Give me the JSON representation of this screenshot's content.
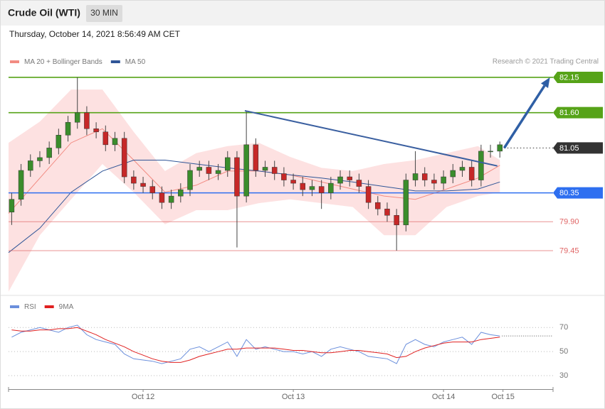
{
  "header": {
    "title": "Crude Oil (WTI)",
    "interval": "30 MIN",
    "timestamp": "Thursday, October 14, 2021 8:56:49 AM CET"
  },
  "chart_data": [
    {
      "type": "candlestick",
      "credit": "Research © 2021 Trading Central",
      "xlim": [
        0,
        174
      ],
      "ylim": [
        78.8,
        82.3
      ],
      "candles": {
        "up_color": "#3b8d2c",
        "down_color": "#c62828",
        "x": [
          1,
          4,
          7,
          10,
          13,
          16,
          19,
          22,
          25,
          28,
          31,
          34,
          37,
          40,
          43,
          46,
          49,
          52,
          55,
          58,
          61,
          64,
          67,
          70,
          73,
          76,
          79,
          82,
          85,
          88,
          91,
          94,
          97,
          100,
          103,
          106,
          109,
          112,
          115,
          118,
          121,
          124,
          127,
          130,
          133,
          136,
          139,
          142,
          145,
          148,
          151,
          154,
          157
        ],
        "open": [
          80.05,
          80.25,
          80.7,
          80.85,
          80.9,
          81.05,
          81.25,
          81.45,
          81.6,
          81.35,
          81.3,
          81.1,
          81.2,
          80.6,
          80.5,
          80.45,
          80.35,
          80.2,
          80.3,
          80.4,
          80.7,
          80.75,
          80.65,
          80.7,
          80.9,
          80.3,
          81.1,
          80.7,
          80.75,
          80.65,
          80.55,
          80.5,
          80.4,
          80.45,
          80.35,
          80.5,
          80.6,
          80.55,
          80.45,
          80.2,
          80.1,
          80.0,
          79.85,
          80.55,
          80.65,
          80.55,
          80.5,
          80.6,
          80.7,
          80.75,
          80.55,
          81.0,
          81.0
        ],
        "high": [
          80.35,
          80.8,
          80.95,
          81.0,
          81.15,
          81.35,
          81.55,
          82.15,
          81.7,
          81.45,
          81.4,
          81.3,
          81.3,
          80.7,
          80.6,
          80.55,
          80.45,
          80.4,
          80.5,
          80.8,
          80.85,
          80.85,
          80.8,
          81.0,
          81.0,
          81.62,
          81.2,
          80.85,
          80.85,
          80.75,
          80.65,
          80.6,
          80.55,
          80.55,
          80.6,
          80.7,
          80.7,
          80.65,
          80.55,
          80.3,
          80.2,
          80.1,
          80.65,
          81.0,
          80.75,
          80.65,
          80.7,
          80.8,
          80.85,
          80.85,
          81.1,
          81.1,
          81.15
        ],
        "low": [
          79.85,
          80.15,
          80.6,
          80.75,
          80.8,
          80.95,
          81.15,
          81.35,
          81.25,
          81.2,
          81.0,
          81.0,
          80.5,
          80.4,
          80.35,
          80.25,
          80.1,
          80.1,
          80.2,
          80.3,
          80.6,
          80.55,
          80.55,
          80.6,
          79.5,
          80.2,
          80.6,
          80.6,
          80.55,
          80.45,
          80.4,
          80.3,
          80.3,
          80.1,
          80.25,
          80.4,
          80.45,
          80.35,
          80.1,
          80.0,
          79.9,
          79.45,
          79.75,
          80.45,
          80.45,
          80.4,
          80.4,
          80.5,
          80.6,
          80.45,
          80.45,
          80.9,
          80.9
        ],
        "close": [
          80.25,
          80.7,
          80.85,
          80.9,
          81.05,
          81.25,
          81.45,
          81.6,
          81.35,
          81.3,
          81.1,
          81.2,
          80.6,
          80.5,
          80.45,
          80.35,
          80.2,
          80.3,
          80.4,
          80.7,
          80.75,
          80.65,
          80.7,
          80.9,
          80.3,
          81.1,
          80.7,
          80.75,
          80.65,
          80.55,
          80.5,
          80.4,
          80.45,
          80.35,
          80.5,
          80.6,
          80.55,
          80.45,
          80.2,
          80.1,
          80.0,
          79.85,
          80.55,
          80.65,
          80.55,
          80.5,
          80.6,
          80.7,
          80.75,
          80.55,
          81.0,
          81.0,
          81.1
        ]
      },
      "overlay_x": [
        0,
        10,
        20,
        30,
        40,
        50,
        60,
        70,
        80,
        90,
        100,
        110,
        120,
        130,
        140,
        150,
        157
      ],
      "series": [
        {
          "name": "MA 20 + Bollinger Bands",
          "color": "#f28b82",
          "band_color": "#fde1e1",
          "upper": [
            81.13,
            81.46,
            81.96,
            81.96,
            81.3,
            80.69,
            80.97,
            81.08,
            81.13,
            80.91,
            80.74,
            80.69,
            80.8,
            80.86,
            80.97,
            81.08,
            80.86
          ],
          "lower": [
            78.81,
            79.69,
            80.25,
            80.8,
            80.36,
            79.86,
            80.08,
            80.08,
            80.19,
            80.25,
            80.19,
            80.13,
            79.69,
            79.69,
            80.13,
            80.3,
            80.36
          ],
          "values": [
            80.03,
            80.58,
            81.13,
            81.35,
            80.86,
            80.36,
            80.47,
            80.69,
            80.69,
            80.63,
            80.52,
            80.41,
            80.3,
            80.25,
            80.41,
            80.58,
            80.78
          ]
        },
        {
          "name": "MA 50",
          "color": "#2f5597",
          "values": [
            79.42,
            79.8,
            80.36,
            80.69,
            80.86,
            80.86,
            80.8,
            80.74,
            80.69,
            80.63,
            80.58,
            80.52,
            80.45,
            80.38,
            80.38,
            80.41,
            80.52
          ]
        }
      ],
      "levels": [
        {
          "value": 82.15,
          "label": "82.15",
          "color": "#56a318",
          "style": "solid",
          "tag": true
        },
        {
          "value": 81.6,
          "label": "81.60",
          "color": "#56a318",
          "style": "solid",
          "tag": true
        },
        {
          "value": 81.05,
          "label": "81.05",
          "color": "#333333",
          "style": "dotted",
          "tag": true
        },
        {
          "value": 80.35,
          "label": "80.35",
          "color": "#2e6ff0",
          "style": "solid",
          "tag": true
        },
        {
          "value": 79.9,
          "label": "79.90",
          "color": "#e06666",
          "style": "solid",
          "tag": false
        },
        {
          "value": 79.45,
          "label": "79.45",
          "color": "#e06666",
          "style": "solid",
          "tag": false
        }
      ],
      "trendline": {
        "x": [
          75.5,
          156.2
        ],
        "y": [
          81.63,
          80.77
        ],
        "color": "#3a5fa0"
      },
      "arrow": {
        "x": [
          158.4,
          173
        ],
        "y": [
          81.05,
          82.15
        ],
        "color": "#2f5fa5"
      }
    },
    {
      "type": "line",
      "xlim": [
        0,
        174
      ],
      "ylim": [
        20,
        79
      ],
      "yticks": [
        30,
        50,
        70
      ],
      "xticks": [
        {
          "value": 43,
          "label": "Oct 12"
        },
        {
          "value": 91,
          "label": "Oct 13"
        },
        {
          "value": 139,
          "label": "Oct 14"
        },
        {
          "value": 158,
          "label": "Oct 15"
        }
      ],
      "x": [
        1,
        4,
        7,
        10,
        13,
        16,
        19,
        22,
        25,
        28,
        31,
        34,
        37,
        40,
        43,
        46,
        49,
        52,
        55,
        58,
        61,
        64,
        67,
        70,
        73,
        76,
        79,
        82,
        85,
        88,
        91,
        94,
        97,
        100,
        103,
        106,
        109,
        112,
        115,
        118,
        121,
        124,
        127,
        130,
        133,
        136,
        139,
        142,
        145,
        148,
        151,
        154,
        157
      ],
      "series": [
        {
          "name": "RSI",
          "color": "#6b8fdc",
          "values": [
            62,
            66,
            68,
            70,
            68,
            66,
            70,
            72,
            64,
            60,
            58,
            56,
            48,
            44,
            43,
            42,
            40,
            42,
            44,
            52,
            54,
            50,
            54,
            58,
            46,
            60,
            52,
            54,
            52,
            50,
            50,
            48,
            50,
            46,
            52,
            54,
            52,
            50,
            46,
            45,
            44,
            40,
            56,
            60,
            56,
            54,
            58,
            60,
            62,
            56,
            66,
            64,
            63
          ]
        },
        {
          "name": "9MA",
          "color": "#e02020",
          "values": [
            68,
            67,
            67,
            68,
            68,
            69,
            69,
            70,
            67,
            64,
            60,
            57,
            54,
            50,
            47,
            44,
            42,
            41,
            41,
            43,
            46,
            48,
            50,
            52,
            52,
            53,
            53,
            53,
            53,
            52,
            51,
            51,
            50,
            49,
            49,
            50,
            51,
            51,
            50,
            49,
            48,
            45,
            46,
            50,
            53,
            55,
            57,
            58,
            58,
            58,
            60,
            61,
            62
          ]
        }
      ]
    }
  ]
}
